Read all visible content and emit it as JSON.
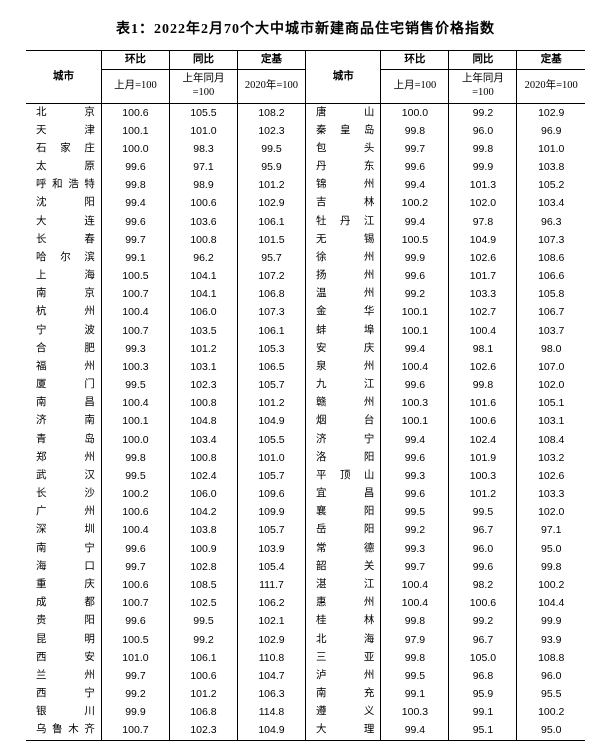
{
  "title": "表1：2022年2月70个大中城市新建商品住宅销售价格指数",
  "header": {
    "city": "城市",
    "mom": "环比",
    "yoy": "同比",
    "fixed": "定基",
    "mom_sub": "上月=100",
    "yoy_sub": "上年同月=100",
    "fixed_sub": "2020年=100"
  },
  "rows": [
    {
      "l": {
        "city": "北　京",
        "mom": "100.6",
        "yoy": "105.5",
        "fx": "108.2"
      },
      "r": {
        "city": "唐　山",
        "mom": "100.0",
        "yoy": "99.2",
        "fx": "102.9"
      }
    },
    {
      "l": {
        "city": "天　津",
        "mom": "100.1",
        "yoy": "101.0",
        "fx": "102.3"
      },
      "r": {
        "city": "秦皇岛",
        "mom": "99.8",
        "yoy": "96.0",
        "fx": "96.9"
      }
    },
    {
      "l": {
        "city": "石家庄",
        "mom": "100.0",
        "yoy": "98.3",
        "fx": "99.5"
      },
      "r": {
        "city": "包　头",
        "mom": "99.7",
        "yoy": "99.8",
        "fx": "101.0"
      }
    },
    {
      "l": {
        "city": "太　原",
        "mom": "99.6",
        "yoy": "97.1",
        "fx": "95.9"
      },
      "r": {
        "city": "丹　东",
        "mom": "99.6",
        "yoy": "99.9",
        "fx": "103.8"
      }
    },
    {
      "l": {
        "city": "呼和浩特",
        "mom": "99.8",
        "yoy": "98.9",
        "fx": "101.2"
      },
      "r": {
        "city": "锦　州",
        "mom": "99.4",
        "yoy": "101.3",
        "fx": "105.2"
      }
    },
    {
      "l": {
        "city": "沈　阳",
        "mom": "99.4",
        "yoy": "100.6",
        "fx": "102.9"
      },
      "r": {
        "city": "吉　林",
        "mom": "100.2",
        "yoy": "102.0",
        "fx": "103.4"
      }
    },
    {
      "l": {
        "city": "大　连",
        "mom": "99.6",
        "yoy": "103.6",
        "fx": "106.1"
      },
      "r": {
        "city": "牡丹江",
        "mom": "99.4",
        "yoy": "97.8",
        "fx": "96.3"
      }
    },
    {
      "l": {
        "city": "长　春",
        "mom": "99.7",
        "yoy": "100.8",
        "fx": "101.5"
      },
      "r": {
        "city": "无　锡",
        "mom": "100.5",
        "yoy": "104.9",
        "fx": "107.3"
      }
    },
    {
      "l": {
        "city": "哈尔滨",
        "mom": "99.1",
        "yoy": "96.2",
        "fx": "95.7"
      },
      "r": {
        "city": "徐　州",
        "mom": "99.9",
        "yoy": "102.6",
        "fx": "108.6"
      }
    },
    {
      "l": {
        "city": "上　海",
        "mom": "100.5",
        "yoy": "104.1",
        "fx": "107.2"
      },
      "r": {
        "city": "扬　州",
        "mom": "99.6",
        "yoy": "101.7",
        "fx": "106.6"
      }
    },
    {
      "l": {
        "city": "南　京",
        "mom": "100.7",
        "yoy": "104.1",
        "fx": "106.8"
      },
      "r": {
        "city": "温　州",
        "mom": "99.2",
        "yoy": "103.3",
        "fx": "105.8"
      }
    },
    {
      "l": {
        "city": "杭　州",
        "mom": "100.4",
        "yoy": "106.0",
        "fx": "107.3"
      },
      "r": {
        "city": "金　华",
        "mom": "100.1",
        "yoy": "102.7",
        "fx": "106.7"
      }
    },
    {
      "l": {
        "city": "宁　波",
        "mom": "100.7",
        "yoy": "103.5",
        "fx": "106.1"
      },
      "r": {
        "city": "蚌　埠",
        "mom": "100.1",
        "yoy": "100.4",
        "fx": "103.7"
      }
    },
    {
      "l": {
        "city": "合　肥",
        "mom": "99.3",
        "yoy": "101.2",
        "fx": "105.3"
      },
      "r": {
        "city": "安　庆",
        "mom": "99.4",
        "yoy": "98.1",
        "fx": "98.0"
      }
    },
    {
      "l": {
        "city": "福　州",
        "mom": "100.3",
        "yoy": "103.1",
        "fx": "106.5"
      },
      "r": {
        "city": "泉　州",
        "mom": "100.4",
        "yoy": "102.6",
        "fx": "107.0"
      }
    },
    {
      "l": {
        "city": "厦　门",
        "mom": "99.5",
        "yoy": "102.3",
        "fx": "105.7"
      },
      "r": {
        "city": "九　江",
        "mom": "99.6",
        "yoy": "99.8",
        "fx": "102.0"
      }
    },
    {
      "l": {
        "city": "南　昌",
        "mom": "100.4",
        "yoy": "100.8",
        "fx": "101.2"
      },
      "r": {
        "city": "赣　州",
        "mom": "100.3",
        "yoy": "101.6",
        "fx": "105.1"
      }
    },
    {
      "l": {
        "city": "济　南",
        "mom": "100.1",
        "yoy": "104.8",
        "fx": "104.9"
      },
      "r": {
        "city": "烟　台",
        "mom": "100.1",
        "yoy": "100.6",
        "fx": "103.1"
      }
    },
    {
      "l": {
        "city": "青　岛",
        "mom": "100.0",
        "yoy": "103.4",
        "fx": "105.5"
      },
      "r": {
        "city": "济　宁",
        "mom": "99.4",
        "yoy": "102.4",
        "fx": "108.4"
      }
    },
    {
      "l": {
        "city": "郑　州",
        "mom": "99.8",
        "yoy": "100.8",
        "fx": "101.0"
      },
      "r": {
        "city": "洛　阳",
        "mom": "99.6",
        "yoy": "101.9",
        "fx": "103.2"
      }
    },
    {
      "l": {
        "city": "武　汉",
        "mom": "99.5",
        "yoy": "102.4",
        "fx": "105.7"
      },
      "r": {
        "city": "平顶山",
        "mom": "99.3",
        "yoy": "100.3",
        "fx": "102.6"
      }
    },
    {
      "l": {
        "city": "长　沙",
        "mom": "100.2",
        "yoy": "106.0",
        "fx": "109.6"
      },
      "r": {
        "city": "宜　昌",
        "mom": "99.6",
        "yoy": "101.2",
        "fx": "103.3"
      }
    },
    {
      "l": {
        "city": "广　州",
        "mom": "100.6",
        "yoy": "104.2",
        "fx": "109.9"
      },
      "r": {
        "city": "襄　阳",
        "mom": "99.5",
        "yoy": "99.5",
        "fx": "102.0"
      }
    },
    {
      "l": {
        "city": "深　圳",
        "mom": "100.4",
        "yoy": "103.8",
        "fx": "105.7"
      },
      "r": {
        "city": "岳　阳",
        "mom": "99.2",
        "yoy": "96.7",
        "fx": "97.1"
      }
    },
    {
      "l": {
        "city": "南　宁",
        "mom": "99.6",
        "yoy": "100.9",
        "fx": "103.9"
      },
      "r": {
        "city": "常　德",
        "mom": "99.3",
        "yoy": "96.0",
        "fx": "95.0"
      }
    },
    {
      "l": {
        "city": "海　口",
        "mom": "99.7",
        "yoy": "102.8",
        "fx": "105.4"
      },
      "r": {
        "city": "韶　关",
        "mom": "99.7",
        "yoy": "99.6",
        "fx": "99.8"
      }
    },
    {
      "l": {
        "city": "重　庆",
        "mom": "100.6",
        "yoy": "108.5",
        "fx": "111.7"
      },
      "r": {
        "city": "湛　江",
        "mom": "100.4",
        "yoy": "98.2",
        "fx": "100.2"
      }
    },
    {
      "l": {
        "city": "成　都",
        "mom": "100.7",
        "yoy": "102.5",
        "fx": "106.2"
      },
      "r": {
        "city": "惠　州",
        "mom": "100.4",
        "yoy": "100.6",
        "fx": "104.4"
      }
    },
    {
      "l": {
        "city": "贵　阳",
        "mom": "99.6",
        "yoy": "99.5",
        "fx": "102.1"
      },
      "r": {
        "city": "桂　林",
        "mom": "99.8",
        "yoy": "99.2",
        "fx": "99.9"
      }
    },
    {
      "l": {
        "city": "昆　明",
        "mom": "100.5",
        "yoy": "99.2",
        "fx": "102.9"
      },
      "r": {
        "city": "北　海",
        "mom": "97.9",
        "yoy": "96.7",
        "fx": "93.9"
      }
    },
    {
      "l": {
        "city": "西　安",
        "mom": "101.0",
        "yoy": "106.1",
        "fx": "110.8"
      },
      "r": {
        "city": "三　亚",
        "mom": "99.8",
        "yoy": "105.0",
        "fx": "108.8"
      }
    },
    {
      "l": {
        "city": "兰　州",
        "mom": "99.7",
        "yoy": "100.6",
        "fx": "104.7"
      },
      "r": {
        "city": "泸　州",
        "mom": "99.5",
        "yoy": "96.8",
        "fx": "96.0"
      }
    },
    {
      "l": {
        "city": "西　宁",
        "mom": "99.2",
        "yoy": "101.2",
        "fx": "106.3"
      },
      "r": {
        "city": "南　充",
        "mom": "99.1",
        "yoy": "95.9",
        "fx": "95.5"
      }
    },
    {
      "l": {
        "city": "银　川",
        "mom": "99.9",
        "yoy": "106.8",
        "fx": "114.8"
      },
      "r": {
        "city": "遵　义",
        "mom": "100.3",
        "yoy": "99.1",
        "fx": "100.2"
      }
    },
    {
      "l": {
        "city": "乌鲁木齐",
        "mom": "100.7",
        "yoy": "102.3",
        "fx": "104.9"
      },
      "r": {
        "city": "大　理",
        "mom": "99.4",
        "yoy": "95.1",
        "fx": "95.0"
      }
    }
  ]
}
